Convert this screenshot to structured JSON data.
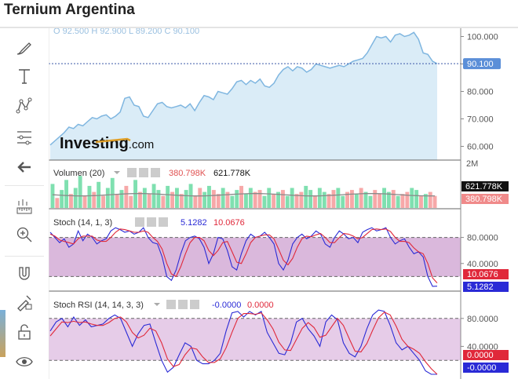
{
  "header": {
    "title": "Ternium Argentina"
  },
  "toolbar": {
    "icons": [
      "brush-icon",
      "text-icon",
      "pattern-icon",
      "measure-icon",
      "back-arrow-icon",
      "ruler-icon",
      "zoom-in-icon",
      "magnet-icon",
      "lock-drawing-icon",
      "unlock-icon",
      "eye-icon"
    ]
  },
  "colors": {
    "price_line": "#7fb6e0",
    "price_fill": "#daecf7",
    "up": "#7fe0b0",
    "down": "#f7a8a8",
    "stoch_k": "#2a2ad6",
    "stoch_d": "#e0283a",
    "band": "#dab8dc",
    "price_tag": "#5b8fd8",
    "vol_tag_up": "#111111",
    "vol_tag_down": "#f08a8a"
  },
  "chart_data": [
    {
      "type": "area",
      "ohlc": {
        "O": "92.500",
        "H": "92.900",
        "L": "89.200",
        "C": "90.100"
      },
      "ohlc_text": "O 92.500  H 92.900  L 89.200  C 90.100",
      "ylim": [
        55,
        103
      ],
      "yticks": [
        "100.000",
        "90.000",
        "80.000",
        "70.000",
        "60.000"
      ],
      "ytick_values": [
        100,
        90,
        80,
        70,
        60
      ],
      "last_price": 90.1,
      "last_label": "90.100",
      "watermark_brand": "Investing",
      "watermark_suffix": ".com",
      "values": [
        60.5,
        62,
        63.5,
        65,
        67,
        66.5,
        68,
        67.5,
        69,
        70.5,
        70,
        71,
        71.5,
        70,
        71,
        72.5,
        77.5,
        78,
        75,
        74.5,
        71,
        70.5,
        73,
        75.5,
        76,
        74.5,
        74,
        74.5,
        75,
        74,
        75.5,
        73,
        76,
        78.5,
        78,
        77,
        80,
        79.5,
        79,
        81,
        83.5,
        84,
        82.5,
        84,
        83,
        84.5,
        82,
        81.5,
        83,
        86,
        88,
        89,
        87.5,
        89,
        88.5,
        87,
        88,
        90,
        89.5,
        89,
        88.5,
        89,
        89.5,
        89,
        90,
        91,
        91.5,
        92,
        94,
        97,
        100,
        99.5,
        100,
        98,
        100.5,
        101,
        100,
        100.5,
        101.5,
        99,
        94,
        93.5,
        91,
        90.1
      ]
    },
    {
      "type": "bar",
      "title": "Volumen (20)",
      "value_down_label": "380.798K",
      "value_up_label": "621.778K",
      "ytick": "2M",
      "volumes": [
        0.6,
        0.25,
        0.45,
        0.7,
        0.35,
        0.5,
        0.8,
        0.3,
        0.55,
        0.4,
        0.65,
        0.3,
        0.5,
        0.75,
        0.35,
        0.45,
        0.55,
        0.3,
        0.7,
        0.4,
        0.5,
        0.35,
        0.6,
        0.45,
        0.3,
        0.55,
        0.4,
        0.5,
        0.35,
        0.45,
        0.6,
        0.3,
        0.5,
        0.4,
        0.55,
        0.45,
        0.35,
        0.5,
        0.4,
        0.3,
        0.45,
        0.55,
        0.35,
        0.5,
        0.4,
        0.45,
        0.3,
        0.5,
        0.35,
        0.4,
        0.45,
        0.3,
        0.5,
        0.35,
        0.4,
        0.55,
        0.45,
        0.3,
        0.5,
        0.4,
        0.35,
        0.45,
        0.5,
        0.3,
        0.4,
        0.45,
        0.35,
        0.5,
        0.4,
        0.3,
        0.45,
        0.35,
        0.5,
        0.4,
        0.45,
        0.3,
        0.35,
        0.4,
        0.5,
        0.45,
        0.3,
        0.35,
        0.4,
        0.3
      ],
      "up": [
        1,
        0,
        1,
        1,
        0,
        1,
        1,
        0,
        1,
        0,
        1,
        0,
        1,
        1,
        0,
        1,
        0,
        0,
        1,
        0,
        1,
        0,
        1,
        1,
        0,
        1,
        0,
        1,
        0,
        1,
        1,
        0,
        0,
        1,
        1,
        0,
        0,
        1,
        0,
        1,
        1,
        0,
        1,
        1,
        0,
        0,
        1,
        1,
        0,
        1,
        0,
        1,
        1,
        0,
        0,
        1,
        1,
        0,
        1,
        1,
        0,
        0,
        1,
        1,
        0,
        0,
        1,
        0,
        1,
        1,
        0,
        0,
        1,
        1,
        0,
        1,
        0,
        0,
        1,
        1,
        0,
        1,
        0,
        0
      ],
      "sma_level": 0.33
    },
    {
      "type": "line",
      "title": "Stoch (14, 1, 3)",
      "k_label": "5.1282",
      "d_label": "10.0676",
      "ylim": [
        0,
        100
      ],
      "yticks": [
        "80.0000",
        "40.0000"
      ],
      "ytick_values": [
        80,
        40
      ],
      "band": [
        20,
        80
      ],
      "k": [
        88,
        80,
        72,
        78,
        65,
        70,
        90,
        75,
        85,
        80,
        70,
        75,
        78,
        90,
        95,
        92,
        88,
        90,
        85,
        88,
        95,
        80,
        72,
        70,
        50,
        20,
        14,
        30,
        55,
        75,
        80,
        82,
        78,
        65,
        40,
        55,
        80,
        78,
        60,
        35,
        30,
        55,
        75,
        85,
        80,
        82,
        88,
        80,
        70,
        40,
        30,
        45,
        70,
        80,
        85,
        78,
        82,
        90,
        85,
        70,
        65,
        80,
        90,
        85,
        78,
        80,
        72,
        88,
        92,
        95,
        90,
        92,
        95,
        80,
        70,
        75,
        78,
        65,
        55,
        58,
        50,
        20,
        5,
        5.1282
      ],
      "d": [
        85,
        82,
        76,
        74,
        72,
        70,
        78,
        82,
        82,
        82,
        76,
        74,
        74,
        80,
        88,
        93,
        92,
        90,
        88,
        88,
        90,
        88,
        80,
        74,
        62,
        40,
        24,
        20,
        35,
        55,
        72,
        80,
        80,
        75,
        60,
        52,
        60,
        72,
        74,
        58,
        42,
        40,
        55,
        72,
        80,
        82,
        84,
        84,
        78,
        62,
        45,
        38,
        48,
        65,
        78,
        82,
        81,
        84,
        86,
        80,
        72,
        72,
        80,
        86,
        85,
        82,
        78,
        80,
        86,
        92,
        93,
        92,
        93,
        89,
        80,
        74,
        74,
        72,
        64,
        58,
        55,
        40,
        18,
        10.0676
      ]
    },
    {
      "type": "line",
      "title": "Stoch RSI (14, 14, 3, 3)",
      "k_label": "-0.0000",
      "d_label": "0.0000",
      "ylim": [
        0,
        100
      ],
      "yticks": [
        "80.0000",
        "40.0000"
      ],
      "ytick_values": [
        80,
        40
      ],
      "band": [
        20,
        80
      ],
      "k": [
        62,
        75,
        80,
        68,
        82,
        70,
        78,
        68,
        70,
        72,
        80,
        85,
        80,
        60,
        40,
        58,
        70,
        72,
        45,
        20,
        3,
        10,
        28,
        45,
        40,
        20,
        15,
        15,
        20,
        30,
        62,
        88,
        90,
        82,
        90,
        85,
        90,
        60,
        45,
        30,
        28,
        45,
        75,
        80,
        65,
        55,
        40,
        75,
        85,
        78,
        45,
        30,
        25,
        40,
        65,
        85,
        92,
        90,
        70,
        45,
        35,
        40,
        30,
        20,
        5,
        0,
        -0.0001
      ],
      "d": [
        55,
        65,
        75,
        74,
        76,
        74,
        75,
        72,
        70,
        70,
        74,
        80,
        82,
        75,
        60,
        52,
        56,
        66,
        62,
        45,
        22,
        11,
        14,
        28,
        38,
        36,
        25,
        17,
        17,
        22,
        38,
        60,
        80,
        87,
        87,
        86,
        88,
        78,
        65,
        46,
        35,
        34,
        50,
        66,
        74,
        67,
        53,
        56,
        68,
        80,
        70,
        51,
        33,
        32,
        44,
        63,
        81,
        89,
        85,
        69,
        50,
        40,
        36,
        30,
        18,
        8,
        0
      ]
    }
  ]
}
